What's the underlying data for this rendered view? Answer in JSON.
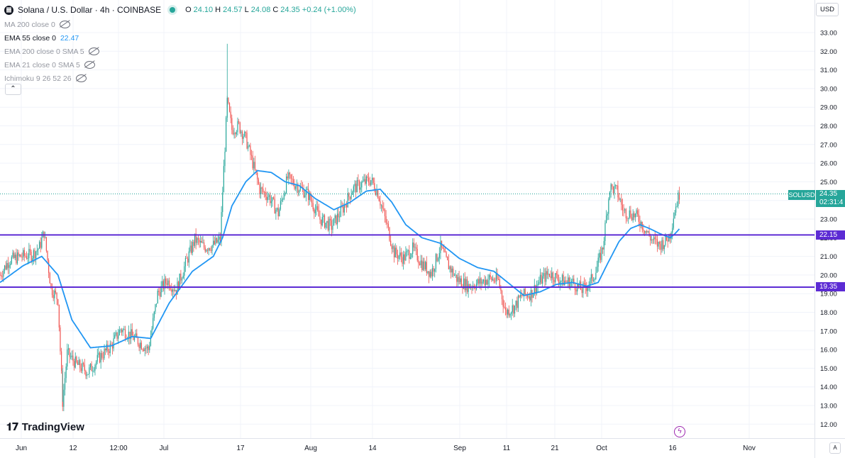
{
  "header": {
    "symbol_title": "Solana / U.S. Dollar · 4h · COINBASE",
    "ohlc": [
      {
        "k": "O",
        "v": "24.10"
      },
      {
        "k": "H",
        "v": "24.57"
      },
      {
        "k": "L",
        "v": "24.08"
      },
      {
        "k": "C",
        "v": "24.35"
      }
    ],
    "change": "+0.24 (+1.00%)"
  },
  "indicators": [
    {
      "name": "MA 200 close 0",
      "value": "",
      "visible": false
    },
    {
      "name": "EMA 55 close 0",
      "value": "22.47",
      "visible": true
    },
    {
      "name": "EMA 200 close 0 SMA 5",
      "value": "",
      "visible": false
    },
    {
      "name": "EMA 21 close 0 SMA 5",
      "value": "",
      "visible": false
    },
    {
      "name": "Ichimoku 9 26 52 26",
      "value": "",
      "visible": false
    }
  ],
  "currency": "USD",
  "branding": "TradingView",
  "price_labels": {
    "symbol": "SOLUSD",
    "price": "24.35",
    "countdown": "02:31:4",
    "level_high": "22.15",
    "level_low": "19.35"
  },
  "colors": {
    "up": "#26a69a",
    "down": "#ef5350",
    "ema": "#2196f3",
    "level": "#5c2bd4"
  },
  "chart_data": {
    "type": "candlestick",
    "x_tick_labels": [
      "Jun",
      "12",
      "12:00",
      "Jul",
      "17",
      "Aug",
      "14",
      "Sep",
      "11",
      "21",
      "Oct",
      "16",
      "Nov"
    ],
    "y_tick_labels": [
      "12.00",
      "13.00",
      "14.00",
      "15.00",
      "16.00",
      "17.00",
      "18.00",
      "19.00",
      "20.00",
      "21.00",
      "22.00",
      "23.00",
      "24.00",
      "25.00",
      "26.00",
      "27.00",
      "28.00",
      "29.00",
      "30.00",
      "31.00",
      "32.00",
      "33.00"
    ],
    "ylim": [
      11.6,
      33.5
    ],
    "grid": true,
    "horizontal_levels": [
      22.15,
      19.35
    ],
    "current_price": 24.35,
    "close_anchors": [
      [
        0,
        20.0
      ],
      [
        8,
        20.8
      ],
      [
        18,
        21.0
      ],
      [
        28,
        21.1
      ],
      [
        34,
        21.5
      ],
      [
        38,
        22.3
      ],
      [
        44,
        19.3
      ],
      [
        50,
        18.7
      ],
      [
        54,
        13.2
      ],
      [
        58,
        15.8
      ],
      [
        66,
        15.2
      ],
      [
        76,
        14.8
      ],
      [
        86,
        15.6
      ],
      [
        96,
        16.2
      ],
      [
        104,
        17.1
      ],
      [
        112,
        16.8
      ],
      [
        120,
        16.4
      ],
      [
        128,
        16.0
      ],
      [
        136,
        19.0
      ],
      [
        144,
        19.7
      ],
      [
        152,
        19.2
      ],
      [
        160,
        20.6
      ],
      [
        168,
        21.9
      ],
      [
        176,
        21.5
      ],
      [
        184,
        21.6
      ],
      [
        190,
        21.9
      ],
      [
        192,
        24.5
      ],
      [
        196,
        29.3
      ],
      [
        200,
        27.8
      ],
      [
        206,
        28.0
      ],
      [
        212,
        27.3
      ],
      [
        218,
        26.0
      ],
      [
        224,
        24.6
      ],
      [
        232,
        24.2
      ],
      [
        240,
        23.3
      ],
      [
        248,
        25.2
      ],
      [
        256,
        24.8
      ],
      [
        266,
        24.3
      ],
      [
        276,
        23.0
      ],
      [
        286,
        22.6
      ],
      [
        296,
        23.6
      ],
      [
        304,
        24.6
      ],
      [
        312,
        24.9
      ],
      [
        320,
        25.1
      ],
      [
        326,
        24.4
      ],
      [
        334,
        22.6
      ],
      [
        340,
        21.2
      ],
      [
        348,
        20.9
      ],
      [
        356,
        21.4
      ],
      [
        364,
        20.6
      ],
      [
        372,
        20.1
      ],
      [
        380,
        21.5
      ],
      [
        386,
        20.6
      ],
      [
        394,
        19.8
      ],
      [
        404,
        19.4
      ],
      [
        414,
        19.6
      ],
      [
        422,
        19.8
      ],
      [
        430,
        19.7
      ],
      [
        436,
        18.0
      ],
      [
        444,
        18.3
      ],
      [
        450,
        18.9
      ],
      [
        458,
        19.0
      ],
      [
        466,
        19.7
      ],
      [
        474,
        20.1
      ],
      [
        484,
        19.7
      ],
      [
        494,
        19.6
      ],
      [
        502,
        19.2
      ],
      [
        508,
        19.5
      ],
      [
        514,
        20.2
      ],
      [
        520,
        21.5
      ],
      [
        526,
        24.7
      ],
      [
        532,
        24.5
      ],
      [
        538,
        23.4
      ],
      [
        544,
        23.3
      ],
      [
        550,
        23.1
      ],
      [
        556,
        22.5
      ],
      [
        562,
        21.9
      ],
      [
        568,
        21.6
      ],
      [
        574,
        21.8
      ],
      [
        578,
        22.2
      ],
      [
        582,
        23.5
      ],
      [
        586,
        24.35
      ]
    ],
    "ema_anchors": [
      [
        0,
        19.6
      ],
      [
        20,
        20.5
      ],
      [
        36,
        21.0
      ],
      [
        50,
        20.0
      ],
      [
        62,
        17.6
      ],
      [
        78,
        16.1
      ],
      [
        96,
        16.2
      ],
      [
        114,
        16.7
      ],
      [
        130,
        16.6
      ],
      [
        146,
        18.5
      ],
      [
        166,
        20.2
      ],
      [
        184,
        21.0
      ],
      [
        192,
        22.0
      ],
      [
        200,
        23.7
      ],
      [
        212,
        25.0
      ],
      [
        222,
        25.6
      ],
      [
        234,
        25.5
      ],
      [
        246,
        25.0
      ],
      [
        258,
        24.8
      ],
      [
        272,
        24.1
      ],
      [
        288,
        23.5
      ],
      [
        302,
        23.9
      ],
      [
        316,
        24.5
      ],
      [
        328,
        24.6
      ],
      [
        338,
        23.9
      ],
      [
        350,
        22.7
      ],
      [
        364,
        22.0
      ],
      [
        380,
        21.7
      ],
      [
        396,
        20.9
      ],
      [
        412,
        20.4
      ],
      [
        426,
        20.2
      ],
      [
        440,
        19.5
      ],
      [
        452,
        18.9
      ],
      [
        466,
        19.1
      ],
      [
        480,
        19.5
      ],
      [
        494,
        19.6
      ],
      [
        506,
        19.4
      ],
      [
        516,
        19.6
      ],
      [
        524,
        20.6
      ],
      [
        534,
        21.8
      ],
      [
        544,
        22.5
      ],
      [
        552,
        22.7
      ],
      [
        560,
        22.5
      ],
      [
        570,
        22.2
      ],
      [
        578,
        22.0
      ],
      [
        582,
        22.2
      ],
      [
        586,
        22.47
      ]
    ]
  }
}
